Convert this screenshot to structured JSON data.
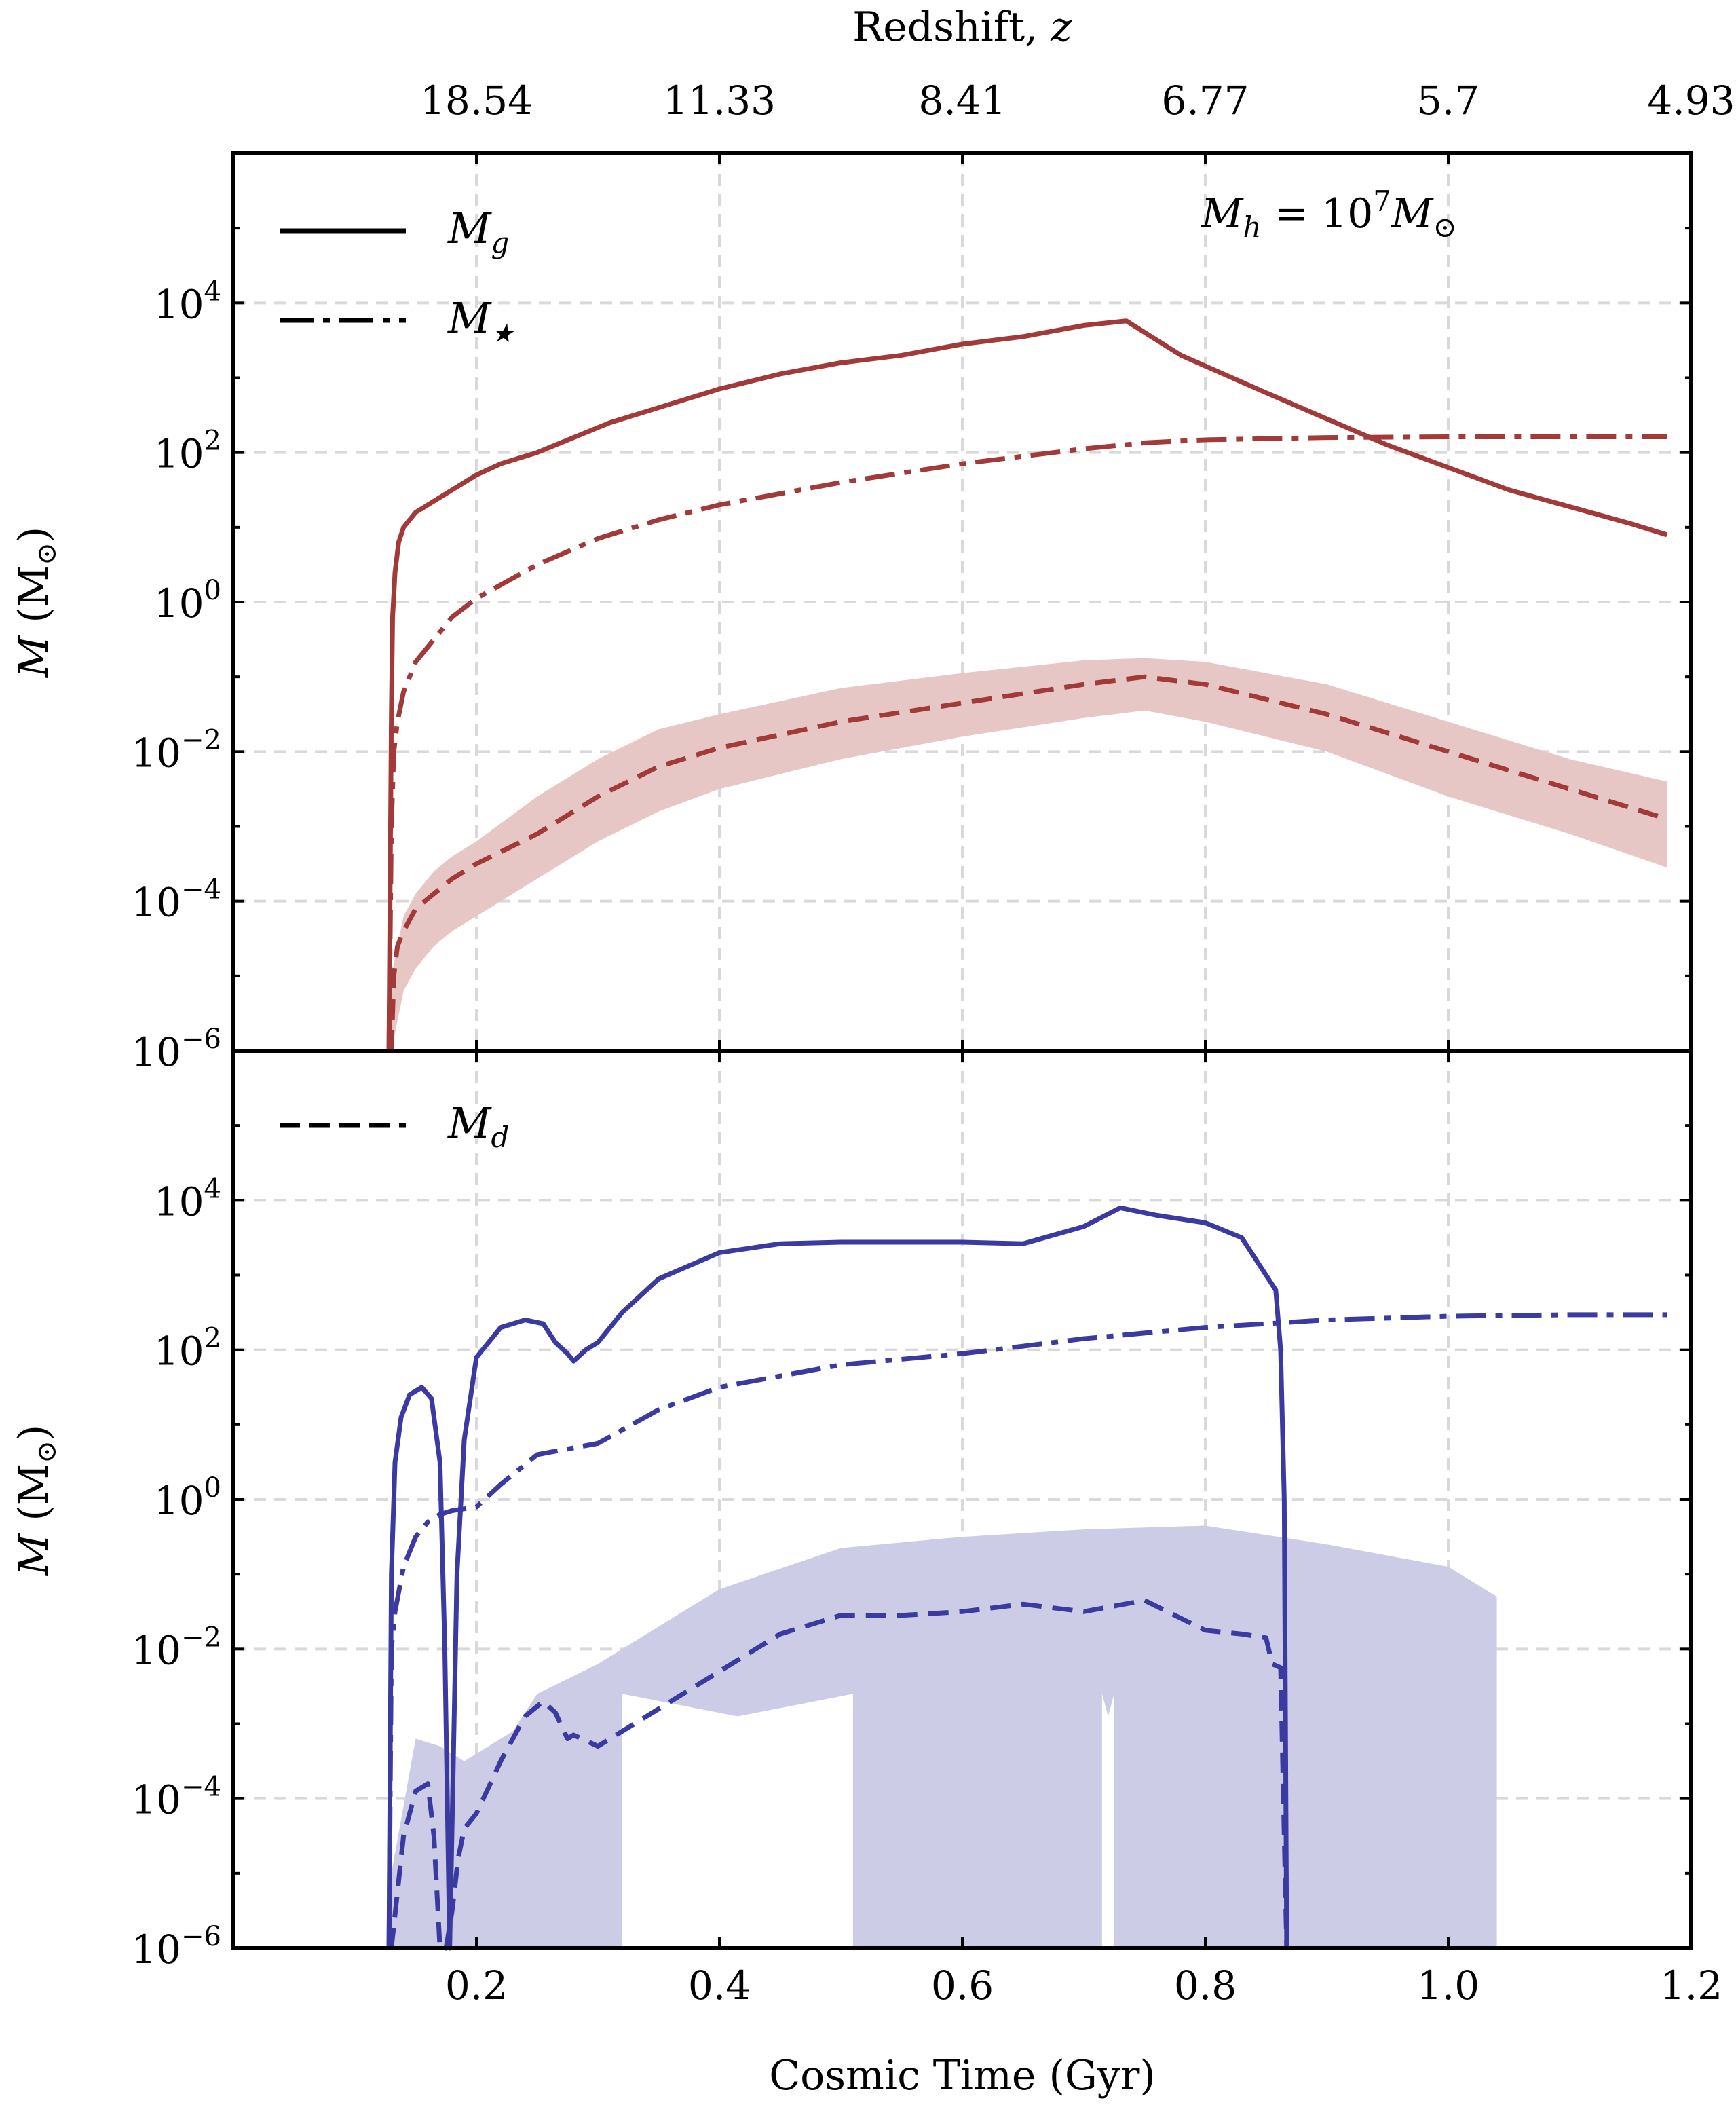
{
  "chart_data": [
    {
      "panel": "top",
      "type": "line",
      "xlabel": "",
      "ylabel": "M (M⊙)",
      "ylabel_main": "M",
      "ylabel_unit": "(M",
      "ylabel_sub": "⊙",
      "ylabel_close": ")",
      "yscale": "log",
      "xlim": [
        0.0,
        1.2
      ],
      "ylim_exp": [
        -6,
        6
      ],
      "grid": true,
      "top_axis": {
        "label": "Redshift, ",
        "label_var": "z",
        "ticks": [
          0.2,
          0.4,
          0.6,
          0.8,
          1.0,
          1.2
        ],
        "tick_labels": [
          "18.54",
          "11.33",
          "8.41",
          "6.77",
          "5.7",
          "4.93"
        ]
      },
      "yticks_exp": [
        -6,
        -4,
        -2,
        0,
        2,
        4
      ],
      "annotation": {
        "pre": "M",
        "sub1": "h",
        "mid": " = 10",
        "sup": "7",
        "post": "M",
        "sub2": "⊙"
      },
      "color": "#a33a3a",
      "band_color": "#e7c6c6",
      "legend": [
        {
          "symbol": "M",
          "sub": "g",
          "style": "solid"
        },
        {
          "symbol": "M",
          "sub": "★",
          "style": "dashdot"
        }
      ],
      "series": [
        {
          "name": "M_g",
          "style": "solid",
          "x": [
            0.128,
            0.13,
            0.131,
            0.133,
            0.136,
            0.14,
            0.15,
            0.165,
            0.18,
            0.2,
            0.22,
            0.25,
            0.28,
            0.31,
            0.35,
            0.4,
            0.45,
            0.5,
            0.55,
            0.6,
            0.65,
            0.7,
            0.735,
            0.78,
            0.85,
            0.95,
            1.05,
            1.15,
            1.18
          ],
          "y_exp": [
            -6,
            -1.5,
            -0.2,
            0.4,
            0.8,
            1.0,
            1.2,
            1.35,
            1.5,
            1.7,
            1.85,
            2.0,
            2.2,
            2.4,
            2.6,
            2.85,
            3.05,
            3.2,
            3.3,
            3.45,
            3.55,
            3.7,
            3.76,
            3.3,
            2.8,
            2.1,
            1.5,
            1.05,
            0.9
          ]
        },
        {
          "name": "M_★",
          "style": "dashdot",
          "x": [
            0.128,
            0.13,
            0.132,
            0.135,
            0.14,
            0.15,
            0.165,
            0.18,
            0.2,
            0.25,
            0.3,
            0.35,
            0.4,
            0.5,
            0.6,
            0.7,
            0.75,
            0.8,
            0.9,
            1.0,
            1.1,
            1.18
          ],
          "y_exp": [
            -6,
            -3.0,
            -2.0,
            -1.6,
            -1.2,
            -0.8,
            -0.5,
            -0.2,
            0.05,
            0.5,
            0.85,
            1.1,
            1.3,
            1.6,
            1.85,
            2.05,
            2.13,
            2.17,
            2.2,
            2.21,
            2.21,
            2.21
          ]
        },
        {
          "name": "M_d",
          "style": "dashed",
          "x": [
            0.13,
            0.132,
            0.135,
            0.14,
            0.15,
            0.165,
            0.18,
            0.2,
            0.25,
            0.3,
            0.35,
            0.4,
            0.5,
            0.6,
            0.7,
            0.75,
            0.8,
            0.9,
            1.0,
            1.1,
            1.18
          ],
          "y_exp": [
            -6,
            -5.0,
            -4.6,
            -4.4,
            -4.1,
            -3.9,
            -3.7,
            -3.5,
            -3.1,
            -2.6,
            -2.2,
            -1.95,
            -1.6,
            -1.35,
            -1.1,
            -1.0,
            -1.1,
            -1.5,
            -2.0,
            -2.5,
            -2.9
          ]
        }
      ],
      "band": {
        "name": "M_d range",
        "x": [
          0.13,
          0.14,
          0.15,
          0.165,
          0.18,
          0.2,
          0.25,
          0.3,
          0.35,
          0.4,
          0.5,
          0.6,
          0.7,
          0.75,
          0.8,
          0.9,
          1.0,
          1.1,
          1.18
        ],
        "upper_exp": [
          -5.0,
          -4.2,
          -3.9,
          -3.6,
          -3.4,
          -3.2,
          -2.6,
          -2.1,
          -1.7,
          -1.5,
          -1.15,
          -0.95,
          -0.78,
          -0.75,
          -0.8,
          -1.1,
          -1.6,
          -2.1,
          -2.4
        ],
        "lower_exp": [
          -6,
          -5.2,
          -4.9,
          -4.6,
          -4.4,
          -4.2,
          -3.7,
          -3.2,
          -2.8,
          -2.5,
          -2.1,
          -1.8,
          -1.55,
          -1.45,
          -1.6,
          -2.0,
          -2.6,
          -3.1,
          -3.55
        ]
      }
    },
    {
      "panel": "bottom",
      "type": "line",
      "xlabel": "Cosmic Time (Gyr)",
      "ylabel": "M (M⊙)",
      "ylabel_main": "M",
      "ylabel_unit": "(M",
      "ylabel_sub": "⊙",
      "ylabel_close": ")",
      "yscale": "log",
      "xlim": [
        0.0,
        1.2
      ],
      "ylim_exp": [
        -6,
        6
      ],
      "grid": true,
      "xticks": [
        0.2,
        0.4,
        0.6,
        0.8,
        1.0,
        1.2
      ],
      "xtick_labels": [
        "0.2",
        "0.4",
        "0.6",
        "0.8",
        "1.0",
        "1.2"
      ],
      "yticks_exp": [
        -6,
        -4,
        -2,
        0,
        2,
        4
      ],
      "color": "#3a3aa0",
      "band_color": "#cccce6",
      "legend": [
        {
          "symbol": "M",
          "sub": "d",
          "style": "dashed"
        }
      ],
      "series": [
        {
          "name": "M_g",
          "style": "solid",
          "x": [
            0.128,
            0.13,
            0.133,
            0.138,
            0.145,
            0.155,
            0.163,
            0.17,
            0.174,
            0.178,
            0.184,
            0.19,
            0.2,
            0.22,
            0.24,
            0.255,
            0.265,
            0.275,
            0.28,
            0.29,
            0.3,
            0.32,
            0.35,
            0.4,
            0.45,
            0.5,
            0.55,
            0.6,
            0.65,
            0.7,
            0.73,
            0.76,
            0.8,
            0.83,
            0.85,
            0.858,
            0.862,
            0.865,
            0.867
          ],
          "y_exp": [
            -6,
            -1.0,
            0.5,
            1.1,
            1.4,
            1.5,
            1.35,
            0.5,
            -2.0,
            -6,
            -1.0,
            0.8,
            1.9,
            2.3,
            2.4,
            2.35,
            2.1,
            1.95,
            1.85,
            2.0,
            2.1,
            2.5,
            2.95,
            3.3,
            3.42,
            3.44,
            3.44,
            3.44,
            3.42,
            3.65,
            3.9,
            3.8,
            3.7,
            3.5,
            3.0,
            2.8,
            2.0,
            0.0,
            -6
          ]
        },
        {
          "name": "M_★",
          "style": "dashdot",
          "x": [
            0.128,
            0.13,
            0.133,
            0.14,
            0.15,
            0.16,
            0.17,
            0.18,
            0.2,
            0.22,
            0.25,
            0.3,
            0.35,
            0.4,
            0.5,
            0.6,
            0.7,
            0.8,
            0.9,
            1.0,
            1.1,
            1.18
          ],
          "y_exp": [
            -6,
            -2.0,
            -1.5,
            -0.9,
            -0.5,
            -0.3,
            -0.2,
            -0.15,
            -0.1,
            0.2,
            0.6,
            0.75,
            1.2,
            1.5,
            1.8,
            1.95,
            2.15,
            2.3,
            2.4,
            2.45,
            2.47,
            2.47
          ]
        },
        {
          "name": "M_d",
          "style": "dashed",
          "x": [
            0.13,
            0.14,
            0.15,
            0.16,
            0.165,
            0.17,
            0.175,
            0.18,
            0.185,
            0.19,
            0.2,
            0.22,
            0.24,
            0.255,
            0.265,
            0.275,
            0.28,
            0.3,
            0.35,
            0.4,
            0.45,
            0.5,
            0.55,
            0.6,
            0.65,
            0.7,
            0.75,
            0.8,
            0.83,
            0.85,
            0.855,
            0.862,
            0.867
          ],
          "y_exp": [
            -6,
            -4.5,
            -3.9,
            -3.8,
            -4.5,
            -6,
            -6,
            -5.5,
            -4.8,
            -4.4,
            -4.2,
            -3.5,
            -2.9,
            -2.7,
            -2.85,
            -3.2,
            -3.15,
            -3.3,
            -2.8,
            -2.3,
            -1.8,
            -1.55,
            -1.55,
            -1.5,
            -1.4,
            -1.5,
            -1.35,
            -1.75,
            -1.8,
            -1.85,
            -2.2,
            -2.25,
            -6
          ]
        }
      ],
      "band_segments": [
        {
          "x": [
            0.13,
            0.15,
            0.17,
            0.19,
            0.21,
            0.23,
            0.25,
            0.3,
            0.35,
            0.4,
            0.5,
            0.6,
            0.7,
            0.8,
            0.9,
            1.0,
            1.04
          ],
          "upper_exp": [
            -5.0,
            -3.2,
            -3.3,
            -3.5,
            -3.3,
            -3.1,
            -2.6,
            -2.2,
            -1.7,
            -1.2,
            -0.65,
            -0.5,
            -0.4,
            -0.35,
            -0.6,
            -0.9,
            -1.3
          ],
          "lower_exp": [
            -6,
            -6,
            -6,
            -6,
            -6,
            -6,
            -6,
            -6,
            -6,
            -6,
            -6,
            -6,
            -6,
            -6,
            -6,
            -6,
            -6
          ]
        }
      ],
      "band_gaps": [
        [
          0.32,
          0.51
        ],
        [
          0.715,
          0.725
        ]
      ]
    }
  ],
  "colors": {
    "red": "#a33a3a",
    "blue": "#3a3aa0"
  }
}
